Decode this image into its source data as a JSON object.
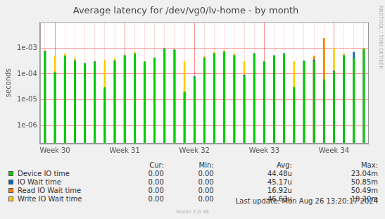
{
  "chart_data": {
    "type": "bar",
    "title": "Average latency for /dev/vg0/lv-home - by month",
    "y_label": "seconds",
    "side_text": "RRDTOOL / TOBI OETIKER",
    "last_update": "Last update: Mon Aug 26 13:20:17 2024",
    "footer": "Munin 2.0.56",
    "log": "y",
    "grid": true,
    "categories": [
      null,
      "Week 30",
      null,
      null,
      null,
      null,
      null,
      null,
      "Week 31",
      null,
      null,
      null,
      null,
      null,
      null,
      "Week 32",
      null,
      null,
      null,
      null,
      null,
      null,
      "Week 33",
      null,
      null,
      null,
      null,
      null,
      null,
      "Week 34",
      null,
      null,
      null
    ],
    "ylim": [
      2e-07,
      0.01
    ],
    "yticks": [
      {
        "value": 1e-06,
        "label": "1e-06"
      },
      {
        "value": 1e-05,
        "label": "1e-05"
      },
      {
        "value": 0.0001,
        "label": "1e-04"
      },
      {
        "value": 0.001,
        "label": "1e-03"
      }
    ],
    "stat_headers": [
      "Cur:",
      "Min:",
      "Avg:",
      "Max:"
    ],
    "series": [
      {
        "name": "Device IO time",
        "color": "#00cc00",
        "values": [
          0.0007,
          0.00012,
          0.0005,
          0.0003,
          0.00025,
          0.00028,
          3e-05,
          0.0003,
          0.0005,
          0.0006,
          0.0003,
          0.0004,
          0.0009,
          0.0008,
          2e-05,
          7e-05,
          0.0004,
          0.0006,
          0.0007,
          0.0005,
          8e-05,
          0.0006,
          0.0003,
          0.0005,
          0.0006,
          3e-05,
          0.0003,
          0.0003,
          6e-05,
          0.00012,
          0.0005,
          0.0004,
          0.0009
        ],
        "stats": [
          {
            "value": 0,
            "label": "0.00"
          },
          {
            "value": 0,
            "label": "0.00"
          },
          {
            "value": 4.448e-05,
            "label": "44.48u"
          },
          {
            "value": 0.02304,
            "label": "23.04m"
          }
        ]
      },
      {
        "name": "IO Wait time",
        "color": "#0066b3",
        "values": [
          0.00075,
          0.00011,
          0.0005,
          0.00032,
          0.00026,
          0.0003,
          2.5e-05,
          0.00032,
          0.00052,
          0.0006,
          0.0002,
          0.00042,
          0.00095,
          0.00085,
          2e-05,
          8e-05,
          0.00042,
          0.00062,
          0.00072,
          0.00052,
          9e-05,
          0.00062,
          0.0003,
          0.00052,
          0.00062,
          3e-05,
          0.00032,
          0.00035,
          5e-05,
          0.00013,
          0.00052,
          0.0007,
          0.00092
        ],
        "stats": [
          {
            "value": 0,
            "label": "0.00"
          },
          {
            "value": 0,
            "label": "0.00"
          },
          {
            "value": 4.517e-05,
            "label": "45.17u"
          },
          {
            "value": 0.05085,
            "label": "50.85m"
          }
        ]
      },
      {
        "name": "Read IO Wait time",
        "color": "#ff8000",
        "values": [
          null,
          null,
          null,
          null,
          null,
          null,
          null,
          null,
          null,
          null,
          0.0003,
          null,
          null,
          null,
          null,
          null,
          null,
          null,
          null,
          null,
          null,
          null,
          null,
          null,
          null,
          null,
          null,
          0.0005,
          0.0024,
          null,
          null,
          null,
          null
        ],
        "stats": [
          {
            "value": 0,
            "label": "0.00"
          },
          {
            "value": 0,
            "label": "0.00"
          },
          {
            "value": 1.692e-05,
            "label": "16.92u"
          },
          {
            "value": 0.05049,
            "label": "50.49m"
          }
        ]
      },
      {
        "name": "Write IO Wait time",
        "color": "#ffcc00",
        "values": [
          0.0008,
          0.0005,
          0.0006,
          0.0004,
          0.00022,
          0.0003,
          0.00035,
          0.0004,
          0.00055,
          0.0007,
          0.00028,
          0.0004,
          0.001,
          0.0009,
          0.0003,
          8e-05,
          0.0005,
          0.0007,
          0.0008,
          0.0006,
          0.0003,
          0.0006,
          0.0003,
          0.0005,
          0.0006,
          0.0003,
          0.0003,
          0.00045,
          0.001,
          0.001,
          0.0006,
          0.0005,
          0.001
        ],
        "stats": [
          {
            "value": 0,
            "label": "0.00"
          },
          {
            "value": 0,
            "label": "0.00"
          },
          {
            "value": 4.663e-05,
            "label": "46.63u"
          },
          {
            "value": 0.0192,
            "label": "19.20m"
          }
        ]
      }
    ]
  }
}
